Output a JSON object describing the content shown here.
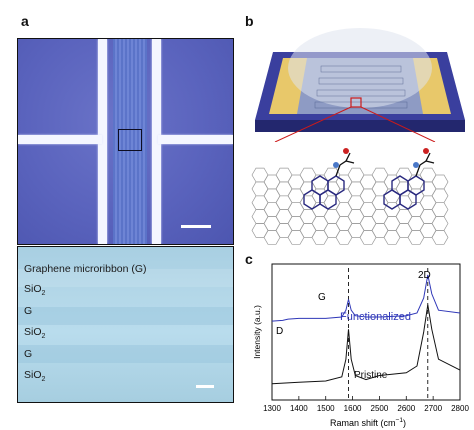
{
  "panels": {
    "a": "a",
    "b": "b",
    "c": "c"
  },
  "micrograph_bottom": {
    "labels": [
      "Graphene microribbon (G)",
      "SiO",
      "G",
      "SiO",
      "G",
      "SiO"
    ],
    "subscript": "2"
  },
  "raman": {
    "ylabel": "Intensity (a.u.)",
    "xlabel": "Raman shift (cm",
    "xlabel_sup": "−1",
    "xlabel_close": ")",
    "peak_labels": {
      "D": "D",
      "G": "G",
      "2D": "2D"
    },
    "series_labels": {
      "functionalized": "Functionalized",
      "pristine": "Pristine"
    },
    "colors": {
      "functionalized": "#2f37b8",
      "pristine": "#111111"
    }
  },
  "chart_data": {
    "type": "line",
    "xlabel": "Raman shift (cm−1)",
    "ylabel": "Intensity (a.u.)",
    "xlim": [
      1300,
      2800
    ],
    "x_ticks": [
      1300,
      1400,
      1500,
      1600,
      2500,
      2600,
      2700,
      2800
    ],
    "axis_break": true,
    "series": [
      {
        "name": "Functionalized",
        "color": "#2f37b8",
        "points": [
          [
            1300,
            0.58
          ],
          [
            1340,
            0.585
          ],
          [
            1360,
            0.595
          ],
          [
            1400,
            0.6
          ],
          [
            1500,
            0.6
          ],
          [
            1560,
            0.61
          ],
          [
            1575,
            0.66
          ],
          [
            1585,
            0.74
          ],
          [
            1595,
            0.66
          ],
          [
            1610,
            0.62
          ],
          [
            1650,
            0.61
          ],
          [
            2500,
            0.61
          ],
          [
            2600,
            0.62
          ],
          [
            2640,
            0.64
          ],
          [
            2665,
            0.75
          ],
          [
            2680,
            0.92
          ],
          [
            2695,
            0.78
          ],
          [
            2720,
            0.66
          ],
          [
            2800,
            0.64
          ]
        ]
      },
      {
        "name": "Pristine",
        "color": "#111111",
        "points": [
          [
            1300,
            0.12
          ],
          [
            1400,
            0.13
          ],
          [
            1500,
            0.14
          ],
          [
            1560,
            0.17
          ],
          [
            1575,
            0.3
          ],
          [
            1585,
            0.52
          ],
          [
            1595,
            0.3
          ],
          [
            1610,
            0.18
          ],
          [
            1650,
            0.15
          ],
          [
            2500,
            0.18
          ],
          [
            2600,
            0.2
          ],
          [
            2640,
            0.25
          ],
          [
            2665,
            0.5
          ],
          [
            2680,
            0.7
          ],
          [
            2695,
            0.52
          ],
          [
            2720,
            0.3
          ],
          [
            2800,
            0.22
          ]
        ]
      }
    ],
    "annotations": [
      "D",
      "G",
      "2D",
      "Functionalized",
      "Pristine"
    ],
    "dashed_lines_at": [
      1585,
      2680
    ]
  }
}
